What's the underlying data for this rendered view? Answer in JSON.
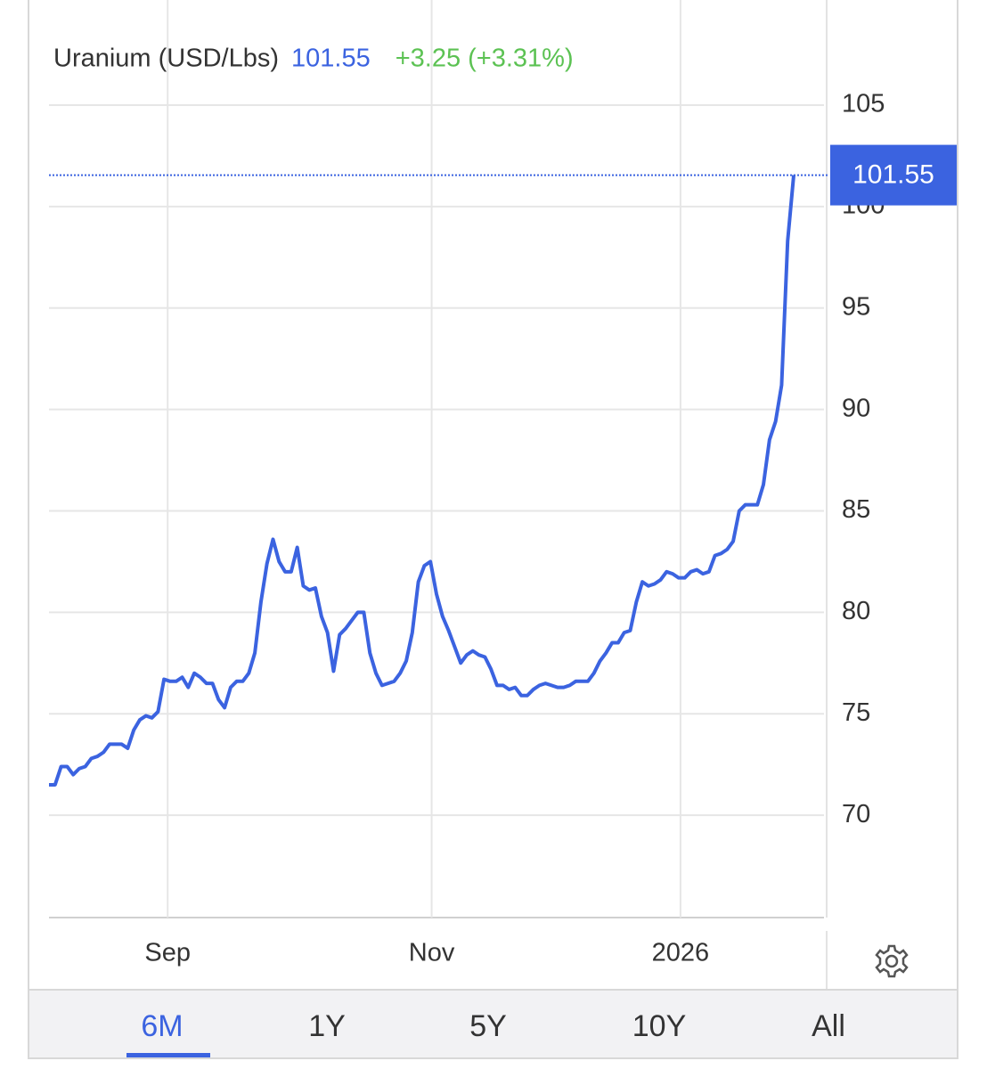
{
  "chart_data": {
    "type": "line",
    "title": "Uranium (USD/Lbs)",
    "change": "+3.25 (+3.31%)",
    "values": [
      71.5,
      71.5,
      72.4,
      72.4,
      72.0,
      72.3,
      72.4,
      72.8,
      72.9,
      73.1,
      73.5,
      73.5,
      73.5,
      73.3,
      74.2,
      74.7,
      74.9,
      74.8,
      75.1,
      76.7,
      76.6,
      76.6,
      76.8,
      76.3,
      77.0,
      76.8,
      76.5,
      76.5,
      75.7,
      75.3,
      76.3,
      76.6,
      76.6,
      77.0,
      78.0,
      80.5,
      82.4,
      83.6,
      82.5,
      82.0,
      82.0,
      83.2,
      81.3,
      81.1,
      81.2,
      79.8,
      79.0,
      77.1,
      78.9,
      79.2,
      79.6,
      80.0,
      80.0,
      78.0,
      77.0,
      76.4,
      76.5,
      76.6,
      77.0,
      77.6,
      79.0,
      81.5,
      82.3,
      82.5,
      80.9,
      79.8,
      79.1,
      78.3,
      77.5,
      77.9,
      78.1,
      77.9,
      77.8,
      77.2,
      76.4,
      76.4,
      76.2,
      76.3,
      75.9,
      75.9,
      76.2,
      76.4,
      76.5,
      76.4,
      76.3,
      76.3,
      76.4,
      76.6,
      76.6,
      76.6,
      77.0,
      77.6,
      78.0,
      78.5,
      78.5,
      79.0,
      79.1,
      80.5,
      81.5,
      81.3,
      81.4,
      81.6,
      82.0,
      81.9,
      81.7,
      81.7,
      82.0,
      82.1,
      81.9,
      82.0,
      82.8,
      82.9,
      83.1,
      83.5,
      85.0,
      85.3,
      85.3,
      85.3,
      86.3,
      88.5,
      89.4,
      91.2,
      98.3,
      101.55
    ],
    "color": "#3b63e0",
    "change_color": "#5cc253",
    "xlim": [
      0,
      128
    ],
    "xticks": [
      {
        "value": 19.6,
        "label": "Sep"
      },
      {
        "value": 63.2,
        "label": "Nov"
      },
      {
        "value": 104.3,
        "label": "2026"
      }
    ],
    "ylim": [
      65,
      105
    ],
    "yticks": [
      70,
      75,
      80,
      85,
      90,
      95,
      100,
      105
    ],
    "grid": true,
    "ranges": [
      "6M",
      "1Y",
      "5Y",
      "10Y",
      "All"
    ],
    "active_range": "6M"
  }
}
